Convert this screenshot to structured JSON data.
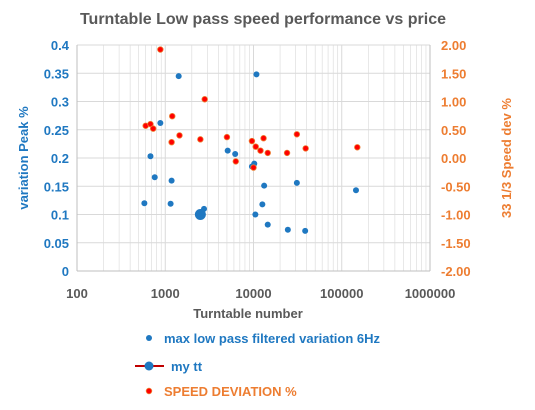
{
  "chart_data": {
    "type": "scatter",
    "title": "Turntable Low pass speed performance vs price",
    "xlabel": "Turntable number",
    "ylabel_left": "variation  Peak %",
    "ylabel_right": "33 1/3  Speed dev %",
    "x_scale": "log",
    "xlim": [
      100,
      1000000
    ],
    "ylim_left": [
      0,
      0.4
    ],
    "ylim_right": [
      -2.0,
      2.0
    ],
    "x_ticks": [
      100,
      1000,
      10000,
      100000,
      1000000
    ],
    "x_tick_labels": [
      "100",
      "1000",
      "10000",
      "100000",
      "1000000"
    ],
    "y_left_ticks": [
      0,
      0.05,
      0.1,
      0.15,
      0.2,
      0.25,
      0.3,
      0.35,
      0.4
    ],
    "y_left_tick_labels": [
      "0",
      "0.05",
      "0.1",
      "0.15",
      "0.2",
      "0.25",
      "0.3",
      "0.35",
      "0.4"
    ],
    "y_right_ticks": [
      -2,
      -1.5,
      -1,
      -0.5,
      0,
      0.5,
      1,
      1.5,
      2
    ],
    "y_right_tick_labels": [
      "-2.00",
      "-1.50",
      "-1.00",
      "-0.50",
      "0.00",
      "0.50",
      "1.00",
      "1.50",
      "2.00"
    ],
    "grid": true,
    "legend_position": "bottom",
    "colors": {
      "blue": "#1f78c1",
      "red": "#ff0000",
      "orange": "#ed7d31",
      "title": "#595959",
      "grid": "#d9d9d9"
    },
    "series": [
      {
        "name": "max low pass filtered variation 6Hz",
        "axis": "left",
        "points": [
          [
            580,
            0.12
          ],
          [
            680,
            0.203
          ],
          [
            760,
            0.166
          ],
          [
            880,
            0.262
          ],
          [
            1150,
            0.119
          ],
          [
            1180,
            0.16
          ],
          [
            1420,
            0.345
          ],
          [
            2750,
            0.11
          ],
          [
            5100,
            0.213
          ],
          [
            6200,
            0.207
          ],
          [
            9600,
            0.185
          ],
          [
            10200,
            0.19
          ],
          [
            10500,
            0.1
          ],
          [
            10800,
            0.348
          ],
          [
            12600,
            0.118
          ],
          [
            13200,
            0.151
          ],
          [
            14500,
            0.082
          ],
          [
            24500,
            0.073
          ],
          [
            31000,
            0.156
          ],
          [
            38500,
            0.071
          ],
          [
            145000,
            0.143
          ]
        ]
      },
      {
        "name": "my tt",
        "axis": "left",
        "points": [
          [
            2500,
            0.1
          ]
        ]
      },
      {
        "name": "SPEED DEVIATION %",
        "axis": "right",
        "points": [
          [
            600,
            0.57
          ],
          [
            680,
            0.6
          ],
          [
            730,
            0.52
          ],
          [
            880,
            1.92
          ],
          [
            1180,
            0.28
          ],
          [
            1200,
            0.74
          ],
          [
            1450,
            0.4
          ],
          [
            2500,
            0.33
          ],
          [
            2800,
            1.04
          ],
          [
            5000,
            0.37
          ],
          [
            6300,
            -0.06
          ],
          [
            9600,
            0.3
          ],
          [
            10000,
            -0.17
          ],
          [
            10600,
            0.2
          ],
          [
            12000,
            0.13
          ],
          [
            13000,
            0.35
          ],
          [
            14500,
            0.09
          ],
          [
            24000,
            0.09
          ],
          [
            31000,
            0.42
          ],
          [
            39000,
            0.17
          ],
          [
            150000,
            0.19
          ]
        ]
      }
    ]
  }
}
